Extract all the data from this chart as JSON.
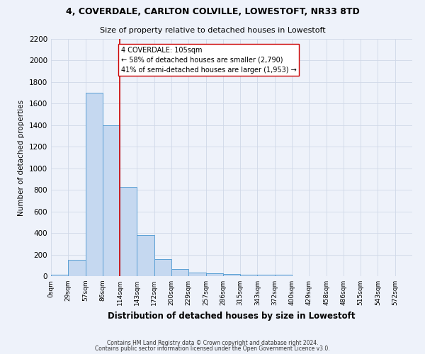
{
  "title1": "4, COVERDALE, CARLTON COLVILLE, LOWESTOFT, NR33 8TD",
  "title2": "Size of property relative to detached houses in Lowestoft",
  "xlabel": "Distribution of detached houses by size in Lowestoft",
  "ylabel": "Number of detached properties",
  "bar_labels": [
    "0sqm",
    "29sqm",
    "57sqm",
    "86sqm",
    "114sqm",
    "143sqm",
    "172sqm",
    "200sqm",
    "229sqm",
    "257sqm",
    "286sqm",
    "315sqm",
    "343sqm",
    "372sqm",
    "400sqm",
    "429sqm",
    "458sqm",
    "486sqm",
    "515sqm",
    "543sqm",
    "572sqm"
  ],
  "bar_values": [
    10,
    150,
    1700,
    1400,
    830,
    380,
    160,
    65,
    35,
    25,
    20,
    15,
    10,
    10,
    0,
    0,
    0,
    0,
    0,
    0,
    0
  ],
  "bar_color": "#c5d8f0",
  "bar_edge_color": "#5a9fd4",
  "grid_color": "#d0d8e8",
  "background_color": "#eef2fa",
  "vline_color": "#cc0000",
  "annotation_text": "4 COVERDALE: 105sqm\n← 58% of detached houses are smaller (2,790)\n41% of semi-detached houses are larger (1,953) →",
  "annotation_box_color": "#ffffff",
  "annotation_border_color": "#cc0000",
  "footnote1": "Contains HM Land Registry data © Crown copyright and database right 2024.",
  "footnote2": "Contains public sector information licensed under the Open Government Licence v3.0.",
  "ylim": [
    0,
    2200
  ],
  "yticks": [
    0,
    200,
    400,
    600,
    800,
    1000,
    1200,
    1400,
    1600,
    1800,
    2000,
    2200
  ],
  "bin_width": 28.5,
  "n_bins": 21
}
